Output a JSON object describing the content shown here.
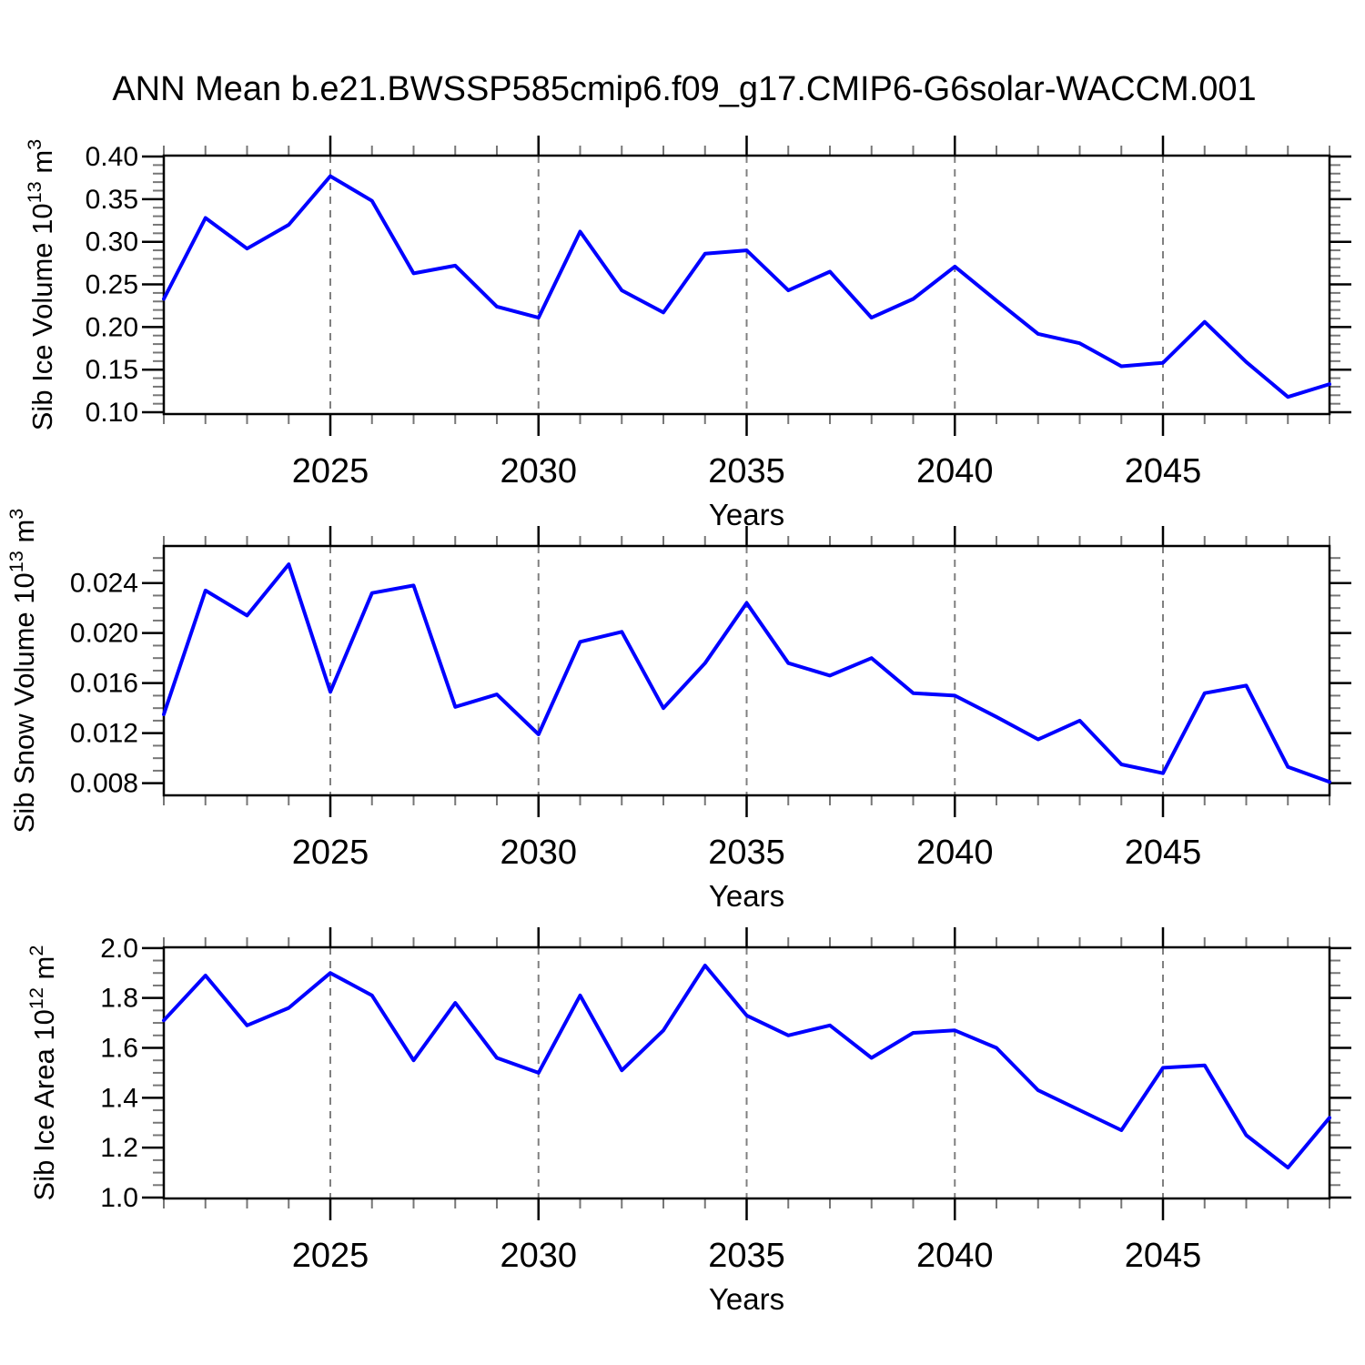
{
  "figure": {
    "title": "ANN Mean b.e21.BWSSP585cmip6.f09_g17.CMIP6-G6solar-WACCM.001",
    "background_color": "#ffffff",
    "line_color": "#0000ff",
    "gridline_color": "#808080",
    "axis_color": "#000000",
    "minor_tick_color": "#777777"
  },
  "chart_data": [
    {
      "type": "line",
      "title": "",
      "xlabel": "Years",
      "ylabel": "Sib Ice Volume 10^13 m^3",
      "ylabel_parts": [
        [
          "t",
          "Sib Ice Volume 10"
        ],
        [
          "s",
          "13"
        ],
        [
          "t",
          " m"
        ],
        [
          "s",
          "3"
        ]
      ],
      "legend": "none",
      "grid": "vertical-dashed-at-major-x",
      "xlim": [
        2021,
        2049
      ],
      "ylim": [
        0.0979,
        0.4011
      ],
      "x_major_ticks": [
        2025,
        2030,
        2035,
        2040,
        2045
      ],
      "x_tick_labels": [
        "2025",
        "2030",
        "2035",
        "2040",
        "2045"
      ],
      "x_minor_step": 1,
      "y_major_ticks": [
        0.1,
        0.15,
        0.2,
        0.25,
        0.3,
        0.35,
        0.4
      ],
      "y_tick_labels": [
        "0.10",
        "0.15",
        "0.20",
        "0.25",
        "0.30",
        "0.35",
        "0.40"
      ],
      "y_minor_step": 0.01,
      "x": [
        2021,
        2022,
        2023,
        2024,
        2025,
        2026,
        2027,
        2028,
        2029,
        2030,
        2031,
        2032,
        2033,
        2034,
        2035,
        2036,
        2037,
        2038,
        2039,
        2040,
        2041,
        2042,
        2043,
        2044,
        2045,
        2046,
        2047,
        2048,
        2049
      ],
      "values": [
        0.233,
        0.328,
        0.292,
        0.32,
        0.377,
        0.348,
        0.263,
        0.272,
        0.224,
        0.211,
        0.312,
        0.243,
        0.217,
        0.286,
        0.29,
        0.243,
        0.265,
        0.211,
        0.233,
        0.271,
        0.231,
        0.192,
        0.181,
        0.154,
        0.158,
        0.206,
        0.159,
        0.118,
        0.133
      ]
    },
    {
      "type": "line",
      "title": "",
      "xlabel": "Years",
      "ylabel": "Sib Snow Volume 10^13 m^3",
      "ylabel_parts": [
        [
          "t",
          "Sib Snow Volume 10"
        ],
        [
          "s",
          "13"
        ],
        [
          "t",
          " m"
        ],
        [
          "s",
          "3"
        ]
      ],
      "legend": "none",
      "grid": "vertical-dashed-at-major-x",
      "xlim": [
        2021,
        2049
      ],
      "ylim": [
        0.00703,
        0.02696
      ],
      "x_major_ticks": [
        2025,
        2030,
        2035,
        2040,
        2045
      ],
      "x_tick_labels": [
        "2025",
        "2030",
        "2035",
        "2040",
        "2045"
      ],
      "x_minor_step": 1,
      "y_major_ticks": [
        0.008,
        0.012,
        0.016,
        0.02,
        0.024
      ],
      "y_tick_labels": [
        "0.008",
        "0.012",
        "0.016",
        "0.020",
        "0.024"
      ],
      "y_minor_step": 0.001,
      "x": [
        2021,
        2022,
        2023,
        2024,
        2025,
        2026,
        2027,
        2028,
        2029,
        2030,
        2031,
        2032,
        2033,
        2034,
        2035,
        2036,
        2037,
        2038,
        2039,
        2040,
        2041,
        2042,
        2043,
        2044,
        2045,
        2046,
        2047,
        2048,
        2049
      ],
      "values": [
        0.0135,
        0.0234,
        0.0214,
        0.0255,
        0.0153,
        0.0232,
        0.0238,
        0.0141,
        0.0151,
        0.0119,
        0.0193,
        0.0201,
        0.014,
        0.0176,
        0.0224,
        0.0176,
        0.0166,
        0.018,
        0.0152,
        0.015,
        0.0133,
        0.0115,
        0.013,
        0.0095,
        0.0088,
        0.0152,
        0.0158,
        0.0093,
        0.0081
      ]
    },
    {
      "type": "line",
      "title": "",
      "xlabel": "Years",
      "ylabel": "Sib Ice Area 10^12 m^2",
      "ylabel_parts": [
        [
          "t",
          "Sib Ice Area 10"
        ],
        [
          "s",
          "12"
        ],
        [
          "t",
          " m"
        ],
        [
          "s",
          "2"
        ]
      ],
      "legend": "none",
      "grid": "vertical-dashed-at-major-x",
      "xlim": [
        2021,
        2049
      ],
      "ylim": [
        0.9964,
        2.003
      ],
      "x_major_ticks": [
        2025,
        2030,
        2035,
        2040,
        2045
      ],
      "x_tick_labels": [
        "2025",
        "2030",
        "2035",
        "2040",
        "2045"
      ],
      "x_minor_step": 1,
      "y_major_ticks": [
        1.0,
        1.2,
        1.4,
        1.6,
        1.8,
        2.0
      ],
      "y_tick_labels": [
        "1.0",
        "1.2",
        "1.4",
        "1.6",
        "1.8",
        "2.0"
      ],
      "y_minor_step": 0.05,
      "x": [
        2021,
        2022,
        2023,
        2024,
        2025,
        2026,
        2027,
        2028,
        2029,
        2030,
        2031,
        2032,
        2033,
        2034,
        2035,
        2036,
        2037,
        2038,
        2039,
        2040,
        2041,
        2042,
        2043,
        2044,
        2045,
        2046,
        2047,
        2048,
        2049
      ],
      "values": [
        1.71,
        1.89,
        1.69,
        1.76,
        1.9,
        1.81,
        1.55,
        1.78,
        1.56,
        1.5,
        1.81,
        1.51,
        1.67,
        1.93,
        1.73,
        1.65,
        1.69,
        1.56,
        1.66,
        1.67,
        1.6,
        1.43,
        1.35,
        1.27,
        1.52,
        1.53,
        1.25,
        1.12,
        1.32
      ]
    }
  ]
}
